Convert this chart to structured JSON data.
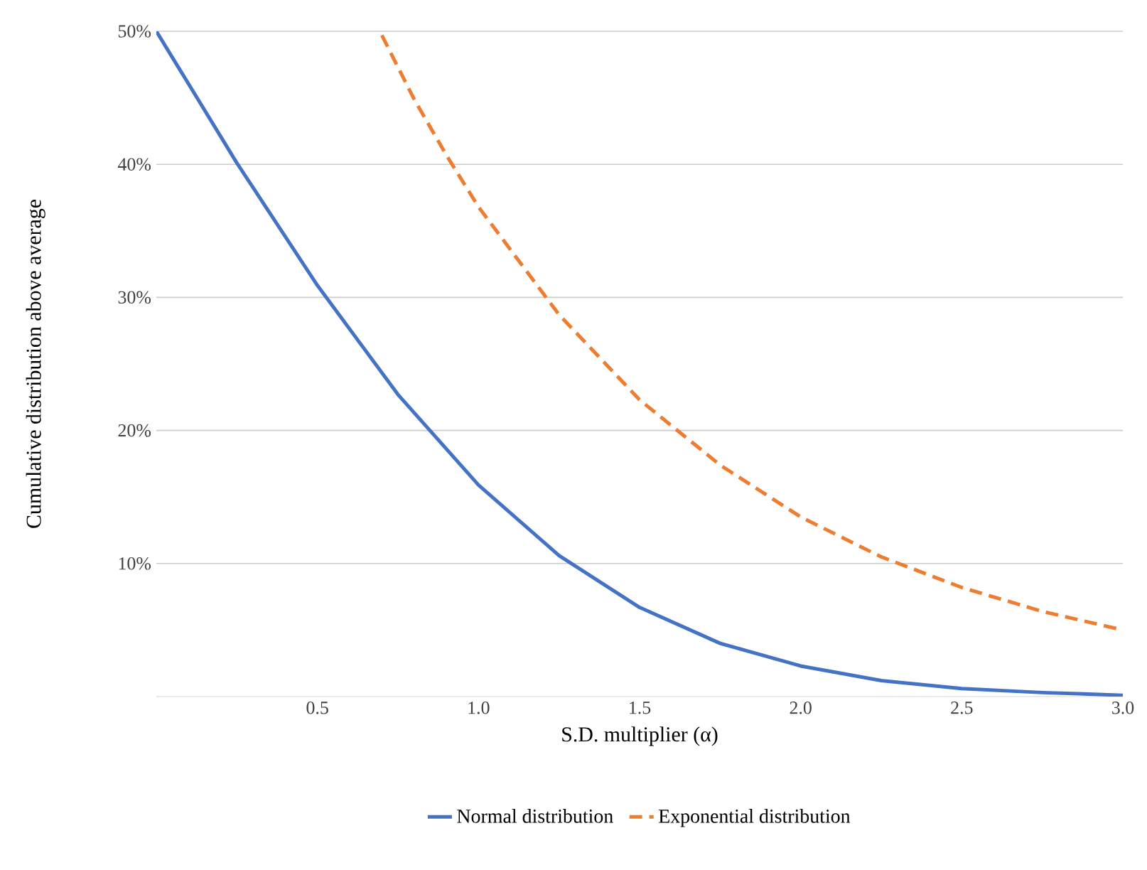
{
  "chart_data": {
    "type": "line",
    "xlabel": "S.D. multiplier (α)",
    "ylabel": "Cumulative distribution  above average",
    "xlim": [
      0,
      3
    ],
    "ylim": [
      0,
      50
    ],
    "xticks": [
      0.5,
      {
        "value": 1,
        "label": "1.0"
      },
      1.5,
      {
        "value": 2,
        "label": "2.0"
      },
      2.5,
      {
        "value": 3,
        "label": "3.0"
      }
    ],
    "yticks": [
      {
        "value": 10,
        "label": "10%"
      },
      {
        "value": 20,
        "label": "20%"
      },
      {
        "value": 30,
        "label": "30%"
      },
      {
        "value": 40,
        "label": "40%"
      },
      {
        "value": 50,
        "label": "50%"
      }
    ],
    "grid": "y",
    "legend": "bottom",
    "series": [
      {
        "name": "Normal distribution",
        "color": "#4472c4",
        "line_style": "solid",
        "x": [
          0,
          0.25,
          0.5,
          0.75,
          1.0,
          1.25,
          1.5,
          1.75,
          2.0,
          2.25,
          2.5,
          2.75,
          3.0
        ],
        "values": [
          50,
          40.1,
          30.9,
          22.7,
          15.9,
          10.6,
          6.7,
          4.0,
          2.3,
          1.2,
          0.6,
          0.3,
          0.1
        ]
      },
      {
        "name": "Exponential distribution",
        "color": "#ed7d31",
        "line_style": "dashed",
        "x": [
          0.7,
          0.8,
          0.9,
          1.0,
          1.25,
          1.5,
          1.75,
          2.0,
          2.25,
          2.5,
          2.75,
          3.0
        ],
        "values": [
          49.7,
          44.9,
          40.7,
          36.8,
          28.7,
          22.3,
          17.4,
          13.5,
          10.5,
          8.2,
          6.4,
          5.0
        ]
      }
    ]
  }
}
